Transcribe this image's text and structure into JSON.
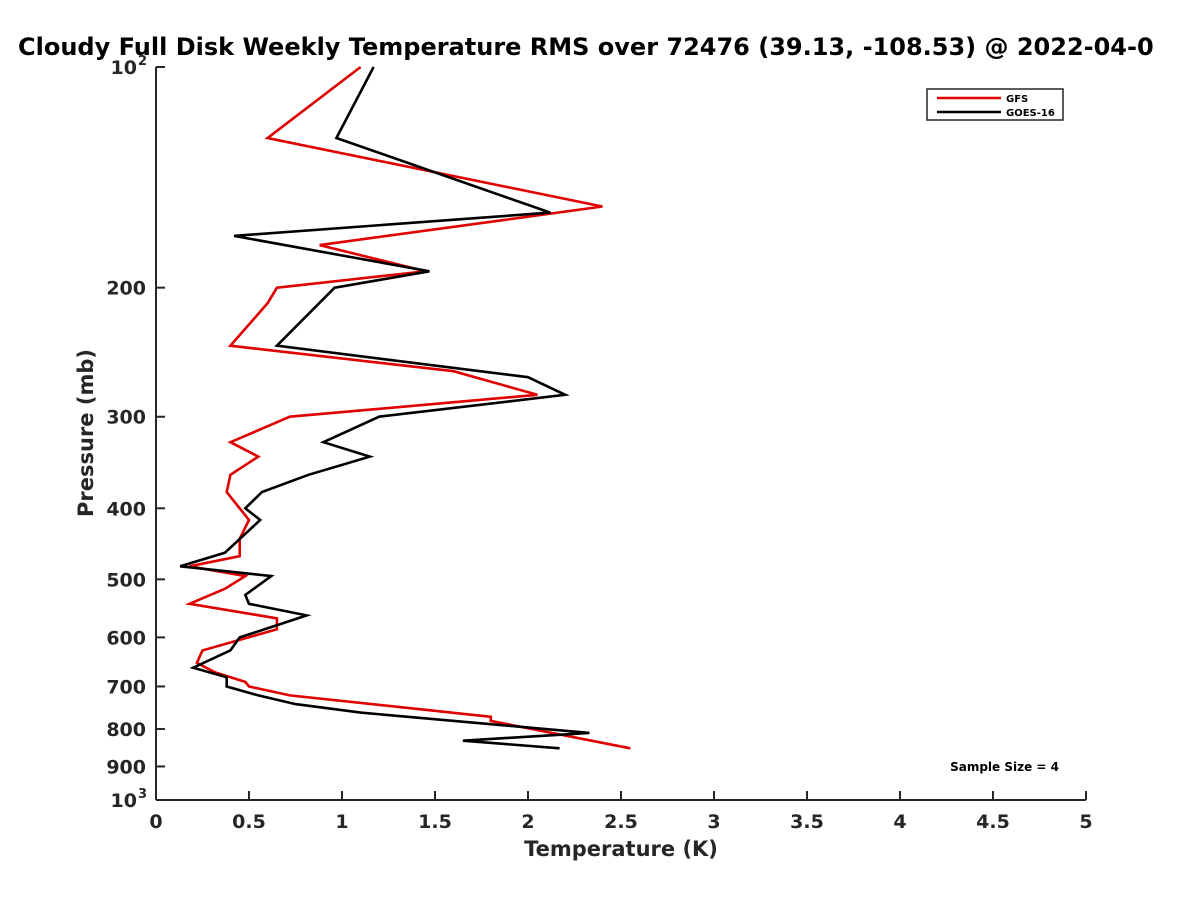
{
  "chart_data": {
    "type": "line",
    "title": "Cloudy Full Disk Weekly Temperature RMS over 72476 (39.13, -108.53) @ 2022-04-0",
    "xlabel": "Temperature (K)",
    "ylabel": "Pressure (mb)",
    "xlim": [
      0,
      5
    ],
    "ylim": [
      100,
      1000
    ],
    "y_scale": "log",
    "y_reversed": true,
    "grid": false,
    "legend_position": "top-right",
    "x_ticks": [
      {
        "value": 0,
        "label": "0"
      },
      {
        "value": 0.5,
        "label": "0.5"
      },
      {
        "value": 1,
        "label": "1"
      },
      {
        "value": 1.5,
        "label": "1.5"
      },
      {
        "value": 2,
        "label": "2"
      },
      {
        "value": 2.5,
        "label": "2.5"
      },
      {
        "value": 3,
        "label": "3"
      },
      {
        "value": 3.5,
        "label": "3.5"
      },
      {
        "value": 4,
        "label": "4"
      },
      {
        "value": 4.5,
        "label": "4.5"
      },
      {
        "value": 5,
        "label": "5"
      }
    ],
    "y_ticks": [
      {
        "value": 100,
        "label": "10",
        "exp": "2"
      },
      {
        "value": 200,
        "label": "200",
        "exp": ""
      },
      {
        "value": 300,
        "label": "300",
        "exp": ""
      },
      {
        "value": 400,
        "label": "400",
        "exp": ""
      },
      {
        "value": 500,
        "label": "500",
        "exp": ""
      },
      {
        "value": 600,
        "label": "600",
        "exp": ""
      },
      {
        "value": 700,
        "label": "700",
        "exp": ""
      },
      {
        "value": 800,
        "label": "800",
        "exp": ""
      },
      {
        "value": 900,
        "label": "900",
        "exp": ""
      },
      {
        "value": 1000,
        "label": "10",
        "exp": "3"
      }
    ],
    "annotation": "Sample Size = 4",
    "series": [
      {
        "name": "GFS",
        "color": "#e00000",
        "x": [
          1.1,
          0.6,
          2.4,
          0.88,
          1.45,
          0.65,
          0.6,
          0.4,
          1.6,
          2.05,
          0.72,
          0.4,
          0.55,
          0.4,
          0.38,
          0.5,
          0.45,
          0.45,
          0.18,
          0.48,
          0.37,
          0.18,
          0.65,
          0.65,
          0.25,
          0.22,
          0.32,
          0.48,
          0.5,
          0.72,
          1.8,
          1.8,
          2.55
        ],
        "y": [
          100,
          125,
          155,
          175,
          190,
          200,
          210,
          240,
          260,
          280,
          300,
          325,
          340,
          360,
          380,
          415,
          440,
          465,
          480,
          495,
          515,
          540,
          565,
          585,
          625,
          650,
          670,
          690,
          700,
          720,
          770,
          780,
          850
        ]
      },
      {
        "name": "GOES-16",
        "color": "#000000",
        "x": [
          1.17,
          0.97,
          2.12,
          0.42,
          1.47,
          0.96,
          0.65,
          2.0,
          2.2,
          1.2,
          0.9,
          1.15,
          0.82,
          0.57,
          0.48,
          0.56,
          0.37,
          0.13,
          0.62,
          0.48,
          0.5,
          0.81,
          0.45,
          0.4,
          0.2,
          0.38,
          0.38,
          0.55,
          0.75,
          1.1,
          2.33,
          1.65,
          2.17
        ],
        "y": [
          100,
          125,
          158,
          170,
          190,
          200,
          240,
          265,
          280,
          300,
          325,
          340,
          360,
          380,
          400,
          415,
          460,
          480,
          495,
          525,
          540,
          560,
          600,
          625,
          660,
          680,
          700,
          720,
          740,
          760,
          810,
          830,
          850
        ]
      }
    ]
  }
}
